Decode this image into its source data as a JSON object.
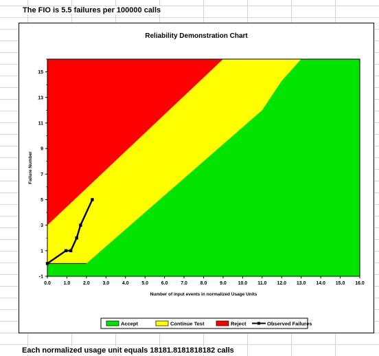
{
  "sheet": {
    "header_note": "The FIO is 5.5 failures per 100000 calls",
    "footer_note": "Each normalized usage unit equals 18181.8181818182 calls"
  },
  "colors": {
    "accept": "#00e400",
    "continue": "#ffff00",
    "reject": "#ff0000",
    "observed": "#000000"
  },
  "chart_data": {
    "type": "area",
    "title": "Reliability Demonstration Chart",
    "xlabel": "Number of input events in normalized Usage Units",
    "ylabel": "Failure Number",
    "xlim": [
      0,
      16
    ],
    "ylim": [
      -1,
      16
    ],
    "x_ticks": [
      "0.0",
      "1.0",
      "2.0",
      "3.0",
      "4.0",
      "5.0",
      "6.0",
      "7.0",
      "8.0",
      "9.0",
      "10.0",
      "11.0",
      "12.0",
      "13.0",
      "14.0",
      "15.0",
      "16.0"
    ],
    "y_ticks": [
      "-1",
      "1",
      "3",
      "5",
      "7",
      "9",
      "11",
      "13",
      "15"
    ],
    "y_tick_values": [
      -1,
      1,
      3,
      5,
      7,
      9,
      11,
      13,
      15
    ],
    "grid": false,
    "legend_position": "bottom",
    "regions": {
      "reject_boundary": [
        [
          0,
          3
        ],
        [
          9,
          16
        ]
      ],
      "accept_boundary": [
        [
          0,
          0
        ],
        [
          2.0,
          0
        ],
        [
          11,
          12
        ],
        [
          12,
          14.3
        ],
        [
          13,
          16
        ]
      ]
    },
    "series": [
      {
        "name": "Accept",
        "kind": "area"
      },
      {
        "name": "Continue Test",
        "kind": "area"
      },
      {
        "name": "Reject",
        "kind": "area"
      },
      {
        "name": "Observed Failures",
        "kind": "line",
        "x": [
          0,
          0.95,
          1.2,
          1.5,
          1.7,
          2.3
        ],
        "y": [
          0,
          1,
          1,
          2,
          3,
          5
        ]
      }
    ]
  }
}
